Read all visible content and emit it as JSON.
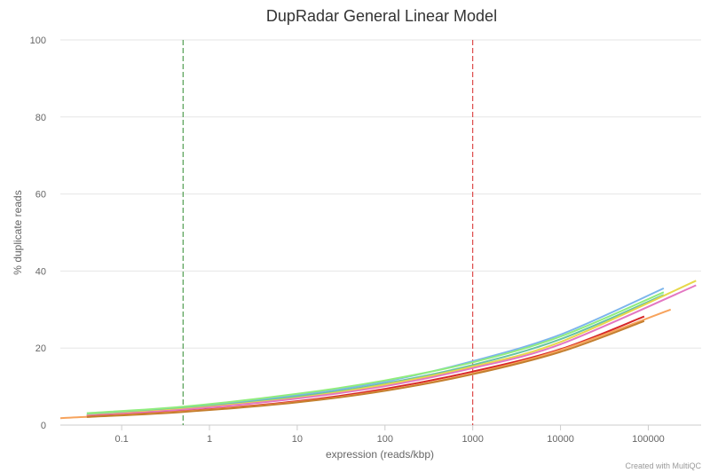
{
  "chart_data": {
    "type": "line",
    "title": "DupRadar General Linear Model",
    "xlabel": "expression (reads/kbp)",
    "ylabel": "% duplicate reads",
    "x_scale": "log",
    "xlim": [
      0.02,
      400000
    ],
    "ylim": [
      0,
      100
    ],
    "x_ticks": [
      0.1,
      1,
      10,
      100,
      1000,
      10000,
      100000
    ],
    "x_tick_labels": [
      "0.1",
      "1",
      "10",
      "100",
      "1000",
      "10000",
      "100000"
    ],
    "y_ticks": [
      0,
      20,
      40,
      60,
      80,
      100
    ],
    "y_tick_labels": [
      "0",
      "20",
      "40",
      "60",
      "80",
      "100"
    ],
    "grid": true,
    "reference_lines": [
      {
        "x": 0.5,
        "color": "#2e8b2e",
        "style": "dashed"
      },
      {
        "x": 1000,
        "color": "#d62728",
        "style": "dashed"
      }
    ],
    "series": [
      {
        "color": "#7cb5ec",
        "x": [
          0.04,
          0.5,
          10,
          100,
          1000,
          10000,
          150000
        ],
        "y": [
          2.7,
          4.5,
          7.8,
          11.3,
          16.6,
          23.5,
          35.5
        ]
      },
      {
        "color": "#90ed7d",
        "x": [
          0.04,
          0.5,
          10,
          100,
          1000,
          10000,
          150000
        ],
        "y": [
          3.1,
          4.8,
          8.1,
          11.6,
          16.3,
          23.0,
          34.5
        ]
      },
      {
        "color": "#66c2a5",
        "x": [
          0.04,
          0.5,
          10,
          100,
          1000,
          10000,
          150000
        ],
        "y": [
          2.6,
          4.3,
          7.4,
          10.8,
          15.6,
          22.3,
          33.8
        ]
      },
      {
        "color": "#e7d84a",
        "x": [
          0.04,
          0.5,
          10,
          100,
          1000,
          10000,
          350000
        ],
        "y": [
          2.5,
          4.2,
          7.1,
          10.5,
          15.2,
          21.6,
          37.5
        ]
      },
      {
        "color": "#e377c2",
        "x": [
          0.04,
          0.5,
          10,
          100,
          1000,
          10000,
          350000
        ],
        "y": [
          2.4,
          4.0,
          6.9,
          10.1,
          14.8,
          21.0,
          36.3
        ]
      },
      {
        "color": "#d62728",
        "x": [
          0.04,
          0.5,
          10,
          100,
          1000,
          10000,
          90000
        ],
        "y": [
          2.2,
          3.6,
          6.2,
          9.4,
          13.9,
          19.7,
          28.2
        ]
      },
      {
        "color": "#f7a35c",
        "x": [
          0.02,
          0.5,
          10,
          100,
          1000,
          10000,
          180000
        ],
        "y": [
          1.8,
          3.5,
          6.0,
          9.0,
          13.4,
          19.5,
          30.0
        ]
      },
      {
        "color": "#c47f2f",
        "x": [
          0.04,
          0.5,
          10,
          100,
          1000,
          10000,
          90000
        ],
        "y": [
          2.1,
          3.4,
          5.9,
          8.9,
          13.2,
          19.0,
          27.0
        ]
      }
    ]
  },
  "credit": "Created with MultiQC"
}
